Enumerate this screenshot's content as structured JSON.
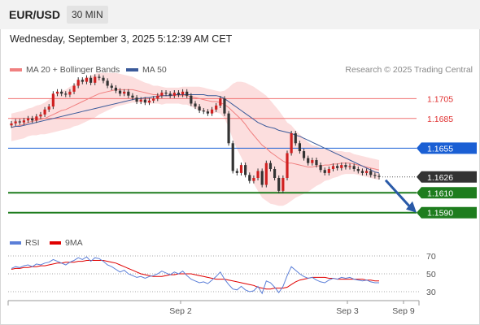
{
  "header": {
    "symbol": "EUR/USD",
    "timeframe": "30 MIN"
  },
  "timestamp": "Wednesday, September 3, 2025 5:12:39 AM CET",
  "legend": {
    "ma20_label": "MA 20 + Bollinger Bands",
    "ma20_color": "#f08080",
    "ma50_label": "MA 50",
    "ma50_color": "#3a5a9a"
  },
  "research_label": "Research © 2025 Trading Central",
  "rsi_legend": {
    "rsi_label": "RSI",
    "rsi_color": "#5b7fd8",
    "ma_label": "9MA",
    "ma_color": "#e00000"
  },
  "chart_data": [
    {
      "type": "candlestick",
      "x_tick_labels": [
        "Sep 2",
        "Sep 3",
        "Sep 9"
      ],
      "ylim": [
        1.1575,
        1.1743
      ],
      "levels": [
        {
          "value": 1.1705,
          "label": "1.1705",
          "kind": "resistance",
          "color": "#f07070"
        },
        {
          "value": 1.1685,
          "label": "1.1685",
          "kind": "resistance",
          "color": "#f07070"
        },
        {
          "value": 1.1655,
          "label": "1.1655",
          "kind": "pivot",
          "color": "#1a5fd4"
        },
        {
          "value": 1.1626,
          "label": "1.1626",
          "kind": "last_price",
          "color": "#333333"
        },
        {
          "value": 1.161,
          "label": "1.1610",
          "kind": "support",
          "color": "#1e7d1e"
        },
        {
          "value": 1.159,
          "label": "1.1590",
          "kind": "support",
          "color": "#1e7d1e"
        }
      ],
      "close": [
        1.168,
        1.1682,
        1.1681,
        1.1683,
        1.1685,
        1.1683,
        1.1687,
        1.1689,
        1.1694,
        1.1697,
        1.171,
        1.1712,
        1.171,
        1.1709,
        1.1712,
        1.1718,
        1.1724,
        1.1722,
        1.1726,
        1.1721,
        1.1727,
        1.1726,
        1.1723,
        1.1718,
        1.1716,
        1.1713,
        1.171,
        1.1712,
        1.1708,
        1.1706,
        1.1702,
        1.1704,
        1.1701,
        1.1703,
        1.1705,
        1.1708,
        1.1711,
        1.171,
        1.1708,
        1.1711,
        1.1709,
        1.1712,
        1.1708,
        1.17,
        1.1697,
        1.1693,
        1.1692,
        1.169,
        1.1694,
        1.1698,
        1.1705,
        1.169,
        1.166,
        1.1632,
        1.163,
        1.1638,
        1.1628,
        1.1622,
        1.1625,
        1.1632,
        1.1618,
        1.164,
        1.1634,
        1.1625,
        1.1612,
        1.1625,
        1.165,
        1.167,
        1.166,
        1.1652,
        1.1645,
        1.164,
        1.1643,
        1.1638,
        1.1633,
        1.163,
        1.1634,
        1.1637,
        1.1635,
        1.1638,
        1.1636,
        1.1637,
        1.1634,
        1.1632,
        1.163,
        1.1632,
        1.1628,
        1.1627,
        1.1626
      ],
      "ma20": [
        1.1676,
        1.1677,
        1.1678,
        1.1679,
        1.1681,
        1.1682,
        1.1683,
        1.1684,
        1.1685,
        1.1687,
        1.1689,
        1.1691,
        1.1693,
        1.1694,
        1.1696,
        1.1698,
        1.17,
        1.1702,
        1.1704,
        1.1706,
        1.1708,
        1.171,
        1.1711,
        1.1712,
        1.1713,
        1.1714,
        1.1714,
        1.1714,
        1.1714,
        1.1714,
        1.1713,
        1.1712,
        1.1711,
        1.171,
        1.1709,
        1.1709,
        1.1708,
        1.1708,
        1.1708,
        1.1708,
        1.1708,
        1.1708,
        1.1708,
        1.1707,
        1.1706,
        1.1705,
        1.1704,
        1.1703,
        1.1702,
        1.1702,
        1.1701,
        1.1699,
        1.1696,
        1.1692,
        1.1688,
        1.1684,
        1.1679,
        1.1673,
        1.1668,
        1.1663,
        1.1658,
        1.1655,
        1.1651,
        1.1648,
        1.1645,
        1.1642,
        1.164,
        1.164,
        1.1639,
        1.1638,
        1.1637,
        1.1636,
        1.1636,
        1.1637,
        1.1637,
        1.1638,
        1.1638,
        1.1639,
        1.1639,
        1.164,
        1.164,
        1.164,
        1.1639,
        1.1638,
        1.1637,
        1.1636,
        1.1635,
        1.1634,
        1.1633
      ],
      "bb_width": [
        0.0014,
        0.0014,
        0.0014,
        0.0014,
        0.0014,
        0.0014,
        0.0015,
        0.0015,
        0.0016,
        0.0017,
        0.0018,
        0.0019,
        0.002,
        0.002,
        0.0021,
        0.0021,
        0.0022,
        0.0022,
        0.0022,
        0.0022,
        0.0022,
        0.0021,
        0.002,
        0.0019,
        0.0018,
        0.0017,
        0.0016,
        0.0015,
        0.0014,
        0.0013,
        0.0012,
        0.0011,
        0.001,
        0.001,
        0.0009,
        0.0009,
        0.0009,
        0.0008,
        0.0008,
        0.0008,
        0.0008,
        0.0009,
        0.0009,
        0.001,
        0.0011,
        0.0012,
        0.0012,
        0.0012,
        0.0012,
        0.0011,
        0.0011,
        0.0014,
        0.002,
        0.0028,
        0.0034,
        0.0038,
        0.0042,
        0.0046,
        0.0049,
        0.0051,
        0.0053,
        0.0053,
        0.0052,
        0.005,
        0.0048,
        0.0045,
        0.0041,
        0.0038,
        0.0034,
        0.0031,
        0.0028,
        0.0025,
        0.0022,
        0.002,
        0.0018,
        0.0016,
        0.0015,
        0.0014,
        0.0013,
        0.0012,
        0.0011,
        0.0011,
        0.001,
        0.001,
        0.001,
        0.001,
        0.001,
        0.001,
        0.001
      ],
      "ma50": [
        1.1676,
        1.1677,
        1.1677,
        1.1678,
        1.1679,
        1.168,
        1.1681,
        1.1682,
        1.1683,
        1.1684,
        1.1685,
        1.1686,
        1.1687,
        1.1688,
        1.1689,
        1.169,
        1.1691,
        1.1692,
        1.1693,
        1.1694,
        1.1695,
        1.1696,
        1.1697,
        1.1698,
        1.1699,
        1.17,
        1.1701,
        1.1702,
        1.1703,
        1.1704,
        1.1705,
        1.1705,
        1.1706,
        1.1706,
        1.1707,
        1.1707,
        1.1708,
        1.1708,
        1.1708,
        1.1709,
        1.1709,
        1.1709,
        1.1709,
        1.1709,
        1.1709,
        1.1709,
        1.1709,
        1.1708,
        1.1708,
        1.1708,
        1.1707,
        1.1705,
        1.1702,
        1.1699,
        1.1696,
        1.1693,
        1.169,
        1.1687,
        1.1684,
        1.1681,
        1.1679,
        1.1677,
        1.1676,
        1.1675,
        1.1673,
        1.1672,
        1.1671,
        1.167,
        1.1668,
        1.1667,
        1.1665,
        1.1663,
        1.1661,
        1.1659,
        1.1657,
        1.1655,
        1.1653,
        1.1651,
        1.1649,
        1.1647,
        1.1645,
        1.1643,
        1.1641,
        1.1639,
        1.1637,
        1.1635,
        1.1633,
        1.1631,
        1.163
      ]
    },
    {
      "type": "line",
      "name": "RSI",
      "ylim": [
        20,
        80
      ],
      "y_tick_labels": [
        "70",
        "50",
        "30"
      ],
      "y_ticks": [
        70,
        50,
        30
      ],
      "rsi": [
        56,
        58,
        57,
        59,
        60,
        58,
        61,
        60,
        62,
        63,
        66,
        64,
        62,
        60,
        63,
        65,
        68,
        66,
        69,
        64,
        68,
        67,
        64,
        60,
        58,
        55,
        52,
        54,
        50,
        48,
        46,
        47,
        45,
        47,
        48,
        50,
        53,
        51,
        49,
        52,
        50,
        53,
        48,
        44,
        42,
        40,
        41,
        39,
        43,
        47,
        52,
        44,
        38,
        33,
        32,
        36,
        32,
        30,
        31,
        36,
        28,
        42,
        40,
        35,
        29,
        36,
        48,
        58,
        54,
        50,
        47,
        45,
        46,
        43,
        41,
        40,
        43,
        45,
        44,
        46,
        45,
        46,
        44,
        43,
        42,
        43,
        41,
        40,
        40
      ],
      "ma9": [
        55,
        56,
        56,
        57,
        57,
        58,
        58,
        59,
        59,
        60,
        61,
        62,
        62,
        63,
        63,
        63,
        64,
        64,
        65,
        65,
        65,
        65,
        65,
        64,
        63,
        62,
        60,
        58,
        56,
        54,
        52,
        50,
        49,
        48,
        47,
        47,
        47,
        48,
        49,
        49,
        50,
        50,
        50,
        50,
        49,
        48,
        47,
        46,
        45,
        44,
        44,
        44,
        43,
        42,
        41,
        40,
        39,
        38,
        37,
        35,
        34,
        33,
        33,
        34,
        34,
        34,
        35,
        38,
        41,
        43,
        44,
        45,
        46,
        46,
        46,
        46,
        45,
        45,
        44,
        44,
        44,
        44,
        44,
        44,
        44,
        43,
        43,
        42,
        42
      ]
    }
  ]
}
